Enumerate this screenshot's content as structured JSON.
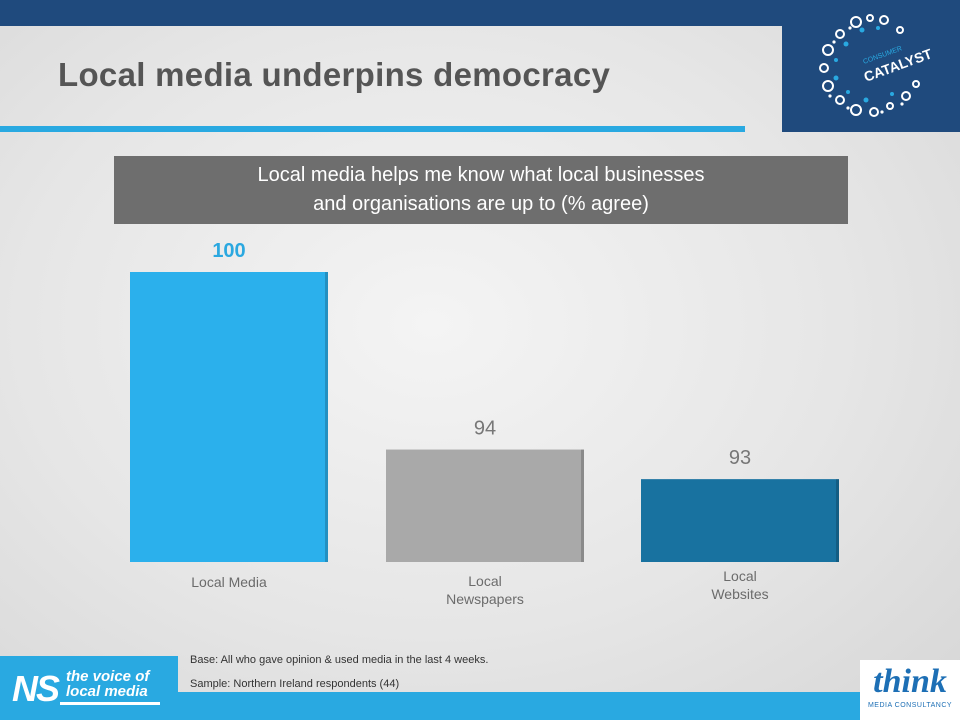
{
  "slide": {
    "title": "Local media underpins democracy"
  },
  "logos": {
    "consumer_catalyst_line1": "CONSUMER",
    "consumer_catalyst_line2": "CATALYST",
    "ns_letters": "NS",
    "ns_tagline_line1": "the voice of",
    "ns_tagline_line2": "local media",
    "think_word": "think",
    "think_sub": "MEDIA CONSULTANCY"
  },
  "footnotes": {
    "base": "Base: All who gave opinion & used media in the last 4 weeks.",
    "sample": "Sample: Northern Ireland respondents (44)"
  },
  "colors": {
    "header_blue": "#1f4a7d",
    "accent_blue": "#29a9e1",
    "bar_local_media": "#2bb0ec",
    "bar_local_newspapers": "#a9a9a9",
    "bar_local_websites": "#1872a0"
  },
  "chart_data": {
    "type": "bar",
    "title_lines": [
      "Local media helps me know what local businesses",
      "and organisations are up to (% agree)"
    ],
    "categories": [
      [
        "Local Media"
      ],
      [
        "Local",
        "Newspapers"
      ],
      [
        "Local",
        "Websites"
      ]
    ],
    "values": [
      100,
      94,
      93
    ],
    "value_labels": [
      "100",
      "94",
      "93"
    ],
    "value_label_colors": [
      "#2ba8e0",
      "#777777",
      "#777777"
    ],
    "bar_colors": [
      "#2bb0ec",
      "#a9a9a9",
      "#1872a0"
    ],
    "grid": false,
    "legend": "none"
  }
}
